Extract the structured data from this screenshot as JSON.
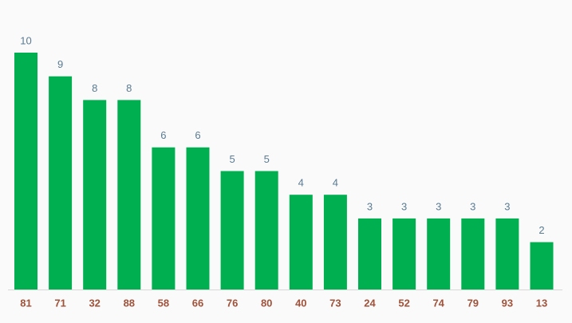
{
  "chart_data": {
    "type": "bar",
    "categories": [
      "81",
      "71",
      "32",
      "88",
      "58",
      "66",
      "76",
      "80",
      "40",
      "73",
      "24",
      "52",
      "74",
      "79",
      "93",
      "13"
    ],
    "values": [
      10,
      9,
      8,
      8,
      6,
      6,
      5,
      5,
      4,
      4,
      3,
      3,
      3,
      3,
      3,
      2
    ],
    "color": "#00b050"
  }
}
